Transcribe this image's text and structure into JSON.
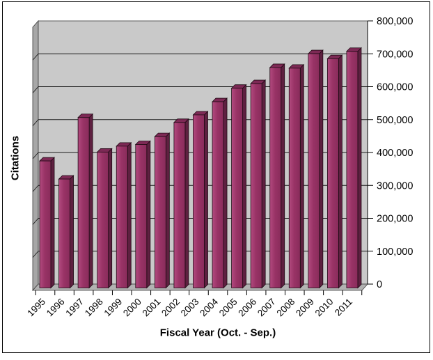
{
  "chart_data": {
    "type": "bar",
    "style": "3d-column",
    "title": "",
    "xlabel": "Fiscal Year (Oct. - Sep.)",
    "ylabel": "Citations",
    "categories": [
      "1995",
      "1996",
      "1997",
      "1998",
      "1999",
      "2000",
      "2001",
      "2002",
      "2003",
      "2004",
      "2005",
      "2006",
      "2007",
      "2008",
      "2009",
      "2010",
      "2011"
    ],
    "values": [
      386000,
      331000,
      518000,
      413000,
      431000,
      436000,
      460000,
      503000,
      526000,
      566000,
      607000,
      621000,
      670000,
      668000,
      712000,
      697000,
      719000
    ],
    "ylim": [
      0,
      800000
    ],
    "ytick_step": 100000,
    "grid": true,
    "legend_position": "none",
    "colors": {
      "bar_front": "#993366",
      "bar_front_highlight": "#b34b80",
      "bar_front_shadow": "#892c5b",
      "bar_top": "#7d2955",
      "bar_side": "#5e2040",
      "bar_outline": "#1f0a14",
      "back_wall": "#c9c9c9",
      "left_wall": "#a7a7a7",
      "floor": "#b2b2b2",
      "gridline": "#1a1a1a",
      "axis": "#000000",
      "text": "#000000"
    }
  }
}
